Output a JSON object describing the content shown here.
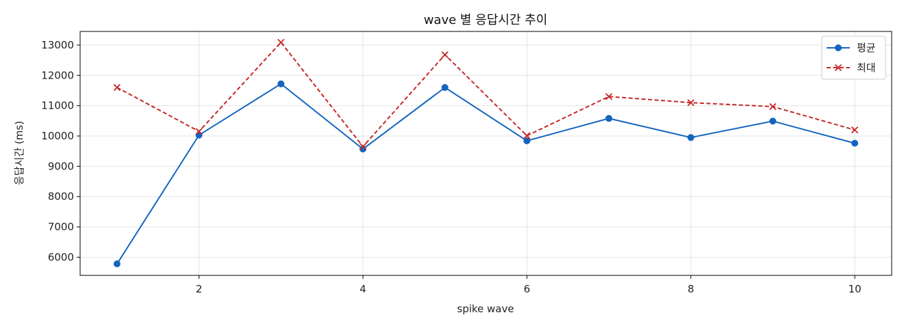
{
  "chart_data": {
    "type": "line",
    "title": "wave 별 응답시간 추이",
    "xlabel": "spike wave",
    "ylabel": "응답시간 (ms)",
    "x": [
      1,
      2,
      3,
      4,
      5,
      6,
      7,
      8,
      9,
      10
    ],
    "xlim": [
      0.55,
      10.45
    ],
    "ylim": [
      5400,
      13450
    ],
    "xticks": [
      2,
      4,
      6,
      8,
      10
    ],
    "yticks": [
      6000,
      7000,
      8000,
      9000,
      10000,
      11000,
      12000,
      13000
    ],
    "grid": true,
    "legend_position": "top-right",
    "series": [
      {
        "name": "평균",
        "values": [
          5780,
          10030,
          11720,
          9570,
          11600,
          9840,
          10580,
          9950,
          10490,
          9760
        ],
        "color": "#1565c0",
        "style": "solid",
        "marker": "circle"
      },
      {
        "name": "최대",
        "values": [
          11600,
          10150,
          13090,
          9650,
          12680,
          10010,
          11300,
          11100,
          10970,
          10200
        ],
        "color": "#c62828",
        "style": "dashed",
        "marker": "x"
      }
    ]
  }
}
